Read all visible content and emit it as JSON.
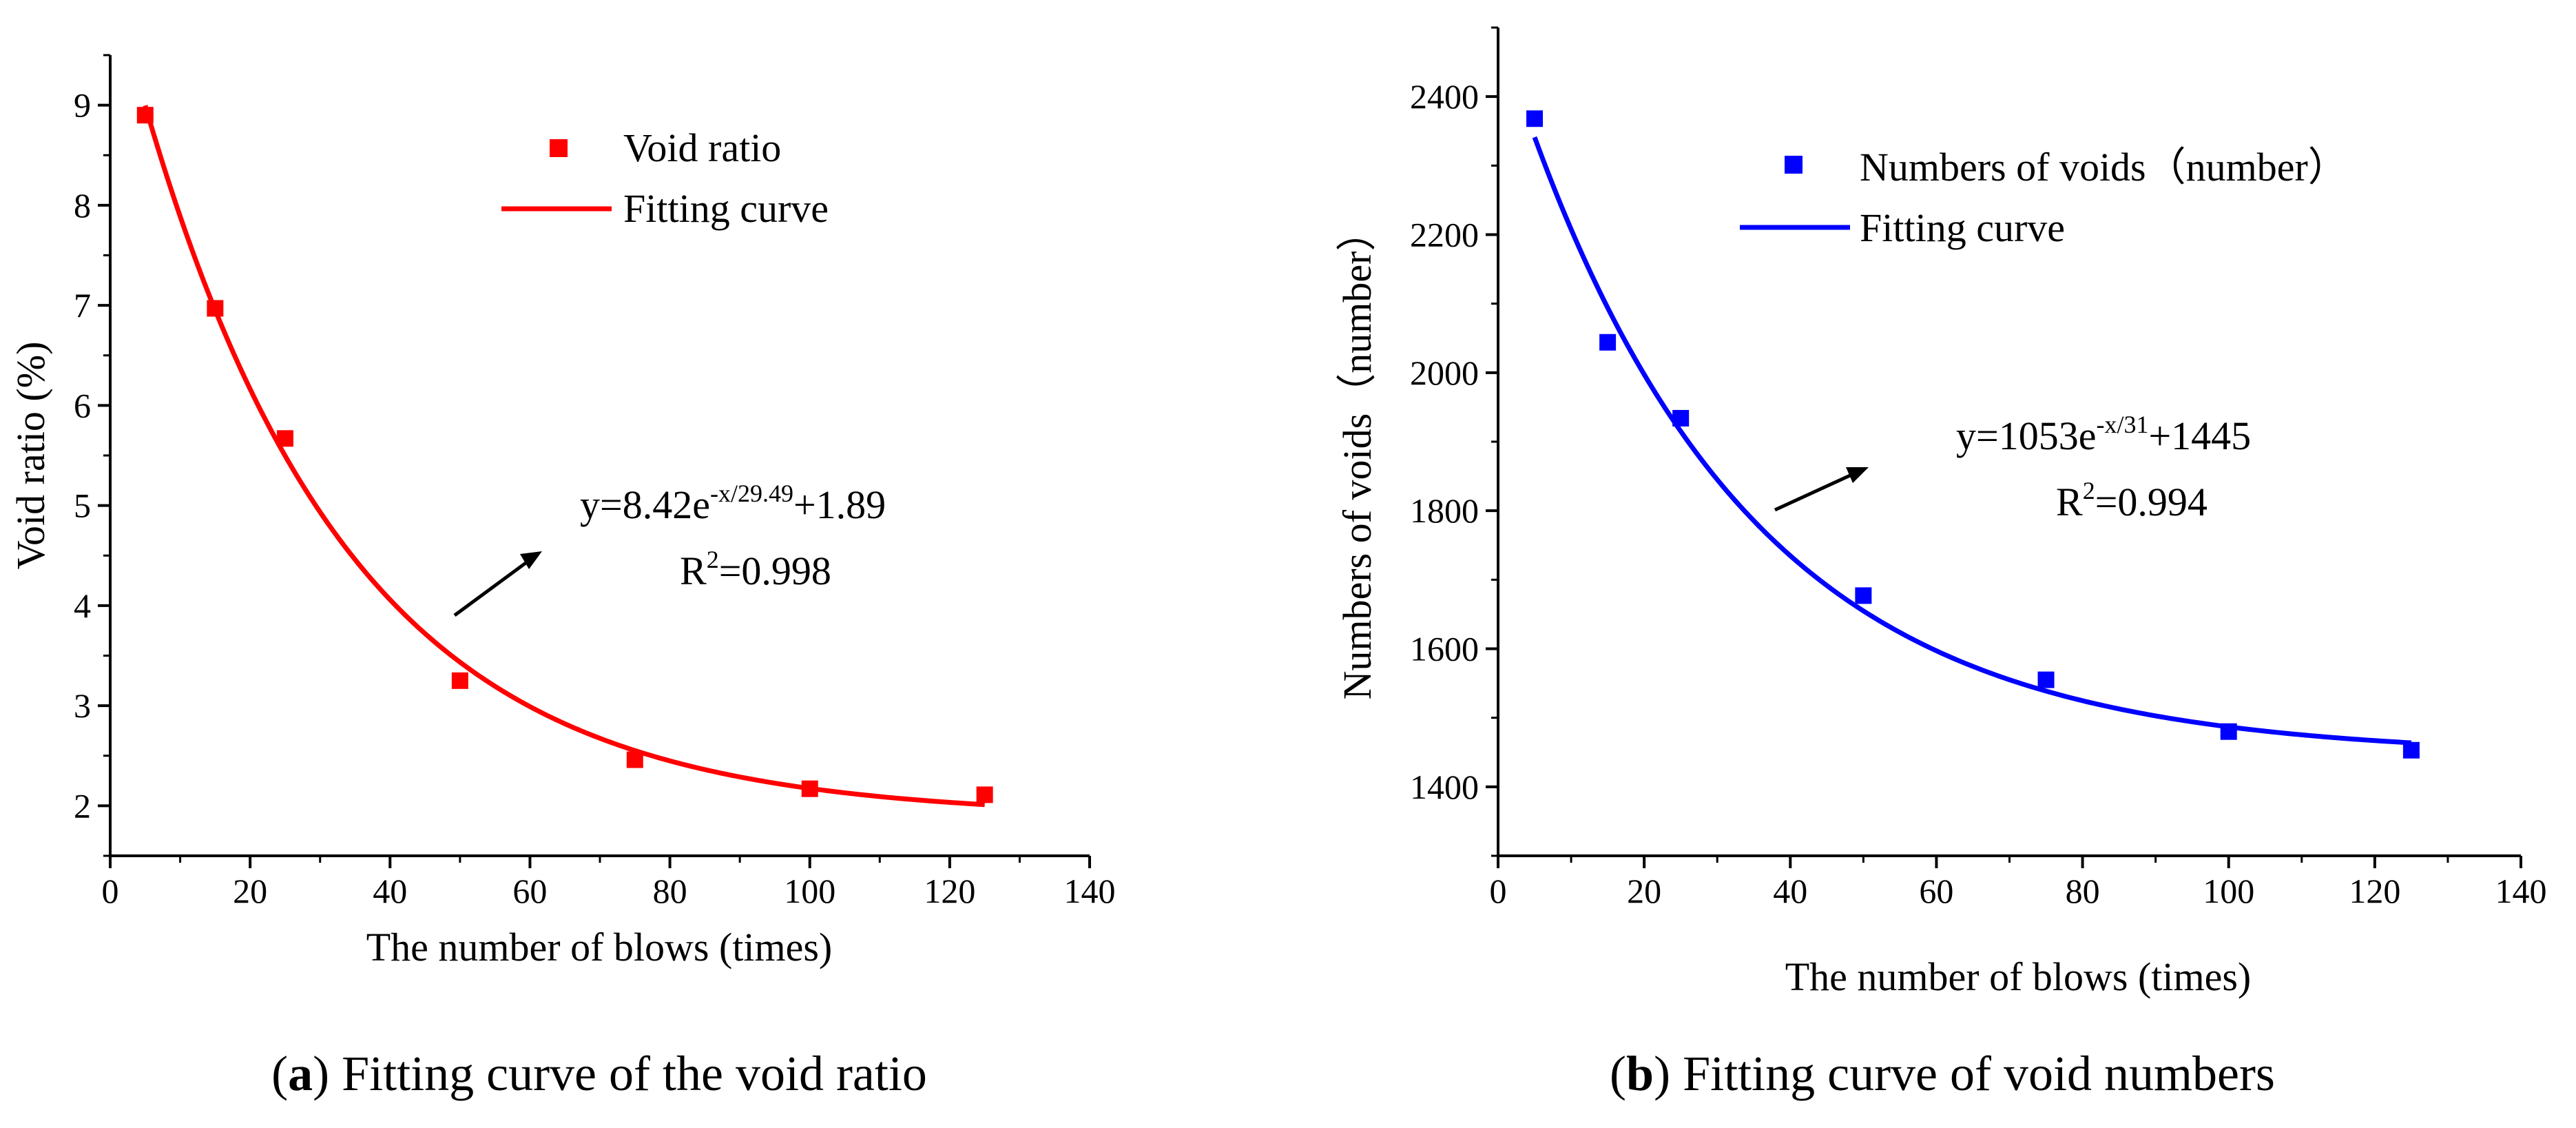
{
  "chart_data": [
    {
      "id": "a",
      "type": "scatter",
      "series": [
        {
          "name": "Void ratio",
          "kind": "scatter",
          "color": "#ff0000",
          "x": [
            5,
            15,
            25,
            50,
            75,
            100,
            125
          ],
          "y": [
            8.9,
            6.97,
            5.67,
            3.25,
            2.46,
            2.17,
            2.11
          ]
        },
        {
          "name": "Fitting curve",
          "kind": "line",
          "color": "#ff0000",
          "fit": {
            "a": 8.42,
            "t": 29.49,
            "c": 1.89,
            "x_start": 5,
            "x_end": 125
          }
        }
      ],
      "xlabel": "The number of blows (times)",
      "ylabel": "Void ratio (%)",
      "xlim": [
        0,
        140
      ],
      "ylim": [
        1.5,
        9.5
      ],
      "xticks": [
        0,
        20,
        40,
        60,
        80,
        100,
        120,
        140
      ],
      "yticks": [
        2,
        3,
        4,
        5,
        6,
        7,
        8,
        9
      ],
      "equation": {
        "base": "y=8.42e",
        "exp": "-x/29.49",
        "tail": "+1.89"
      },
      "r2": {
        "base": "R",
        "exp": "2",
        "tail": "=0.998"
      },
      "caption": {
        "letter": "a",
        "open": "(",
        "close": ")",
        "text": " Fitting curve of the void ratio"
      },
      "legend_position": "top-right"
    },
    {
      "id": "b",
      "type": "scatter",
      "series": [
        {
          "name": "Numbers of voids（number）",
          "kind": "scatter",
          "color": "#0000ff",
          "x": [
            5,
            15,
            25,
            50,
            75,
            100,
            125
          ],
          "y": [
            2368,
            2044,
            1934,
            1677,
            1555,
            1480,
            1453
          ]
        },
        {
          "name": "Fitting curve",
          "kind": "line",
          "color": "#0000ff",
          "fit": {
            "a": 1053,
            "t": 31,
            "c": 1445,
            "x_start": 5,
            "x_end": 125
          }
        }
      ],
      "xlabel": "The number of blows (times)",
      "ylabel": "Numbers of voids（number）",
      "xlim": [
        0,
        140
      ],
      "ylim": [
        1300,
        2500
      ],
      "xticks": [
        0,
        20,
        40,
        60,
        80,
        100,
        120,
        140
      ],
      "yticks": [
        1400,
        1600,
        1800,
        2000,
        2200,
        2400
      ],
      "equation": {
        "base": "y=1053e",
        "exp": "-x/31",
        "tail": "+1445"
      },
      "r2": {
        "base": "R",
        "exp": "2",
        "tail": "=0.994"
      },
      "caption": {
        "letter": "b",
        "open": "(",
        "close": ")",
        "text": " Fitting curve of void numbers"
      },
      "legend_position": "top-right"
    }
  ]
}
